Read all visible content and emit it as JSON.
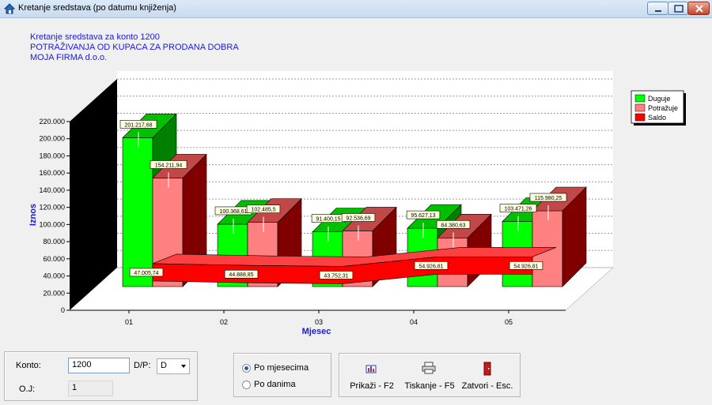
{
  "window": {
    "title": "Kretanje sredstava (po datumu knjiženja)"
  },
  "chart_titles": {
    "line1": "Kretanje sredstava za konto 1200",
    "line2": "POTRAŽIVANJA OD KUPACA ZA PRODANA DOBRA",
    "line3": "MOJA FIRMA d.o.o."
  },
  "chart_data": {
    "type": "bar",
    "categories": [
      "01",
      "02",
      "03",
      "04",
      "05"
    ],
    "series": [
      {
        "name": "Duguje",
        "values": [
          201217.68,
          100368.61,
          91400.15,
          95627.13,
          103471.26
        ]
      },
      {
        "name": "Potražuje",
        "values": [
          154211.94,
          102485.5,
          92536.69,
          84380.63,
          115980.25
        ]
      },
      {
        "name": "Saldo",
        "values": [
          47005.74,
          44888.85,
          43752.31,
          54926.81,
          54926.81
        ]
      }
    ],
    "data_labels": {
      "Duguje": [
        "201.217,68",
        "100.368,61",
        "91.400,15",
        "95.627,13",
        "103.471,26"
      ],
      "Potražuje": [
        "154.211,94",
        "102.485,5",
        "92.536,69",
        "84.380,63",
        "115.980,25"
      ],
      "Saldo": [
        "47.005,74",
        "44.888,85",
        "43.752,31",
        "54.926,81",
        "54.926,81"
      ]
    },
    "xlabel": "Mjesec",
    "ylabel": "Iznos",
    "ylim": [
      0,
      220000
    ],
    "yticks": [
      0,
      20000,
      40000,
      60000,
      80000,
      100000,
      120000,
      140000,
      160000,
      180000,
      200000,
      220000
    ],
    "ytick_labels": [
      "0",
      "20.000",
      "40.000",
      "60.000",
      "80.000",
      "100.000",
      "120.000",
      "140.000",
      "160.000",
      "180.000",
      "200.000",
      "220.000"
    ],
    "grid": true,
    "legend_position": "top-right",
    "colors": {
      "Duguje": "#00ff00",
      "Potražuje": "#ff8080",
      "Saldo": "#ff0000"
    }
  },
  "form": {
    "konto_label": "Konto:",
    "konto_value": "1200",
    "dp_label": "D/P:",
    "dp_value": "D",
    "oj_label": "O.J:",
    "oj_value": "1"
  },
  "period": {
    "options": [
      {
        "label": "Po mjesecima",
        "selected": true
      },
      {
        "label": "Po danima",
        "selected": false
      }
    ]
  },
  "toolbar": {
    "show_label": "Prikaži - F2",
    "print_label": "Tiskanje - F5",
    "close_label": "Zatvori - Esc."
  }
}
